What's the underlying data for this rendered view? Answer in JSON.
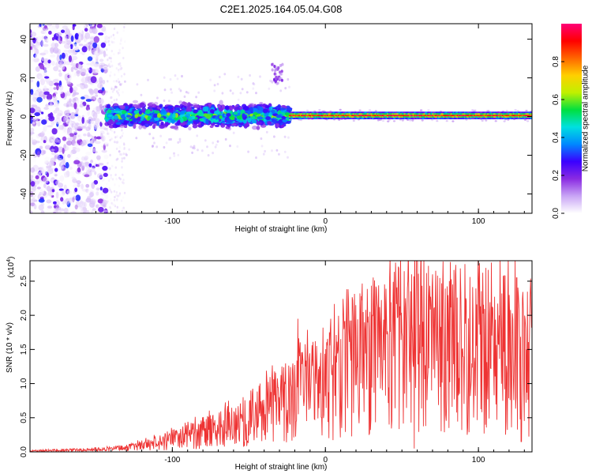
{
  "title": "C2E1.2025.164.05.04.G08",
  "chart_data": [
    {
      "type": "heatmap",
      "xlabel": "Height of straight line (km)",
      "ylabel": "Frequency (Hz)",
      "xlim": [
        -193,
        135
      ],
      "ylim": [
        -50,
        48
      ],
      "xticks": [
        -100,
        0,
        100
      ],
      "yticks": [
        -40,
        -20,
        0,
        20,
        40
      ],
      "colorbar": {
        "label": "Normalized spectral amplitude",
        "range": [
          0,
          1
        ],
        "ticks": [
          "0.0",
          "0.2",
          "0.4",
          "0.6",
          "0.8"
        ],
        "colormap": [
          "#ffffff",
          "#c9a5f5",
          "#8a2be2",
          "#3a00ff",
          "#0088ff",
          "#00e0e0",
          "#00e040",
          "#c0f000",
          "#ffd000",
          "#ff6600",
          "#ff0000",
          "#ff0077"
        ]
      },
      "regions": [
        {
          "x": [
            -193,
            -143
          ],
          "f_spread": [
            -50,
            48
          ],
          "amp": [
            0.0,
            0.35
          ],
          "desc_level": "diffuse"
        },
        {
          "x": [
            -143,
            -23
          ],
          "f_spread": [
            -7,
            8
          ],
          "amp": [
            0.15,
            0.6
          ]
        },
        {
          "x": [
            -35,
            -28
          ],
          "f_spread": [
            17,
            27
          ],
          "amp": [
            0.05,
            0.2
          ]
        },
        {
          "x": [
            -23,
            135
          ],
          "f_center": 0.5,
          "f_spread": [
            -3,
            3
          ],
          "amp": [
            0.7,
            1.0
          ]
        }
      ]
    },
    {
      "type": "line",
      "xlabel": "Height of straight line (km)",
      "ylabel": "SNR (10 * v/v)",
      "yscale_label": "(x10",
      "yscale_exp": "4",
      "xlim": [
        -193,
        135
      ],
      "ylim": [
        0,
        2.8
      ],
      "xticks": [
        -100,
        0,
        100
      ],
      "yticks": [
        "0.0",
        "0.5",
        "1.0",
        "1.5",
        "2.0",
        "2.5"
      ],
      "color": "#ee3333",
      "envelope": {
        "x": [
          -193,
          -160,
          -130,
          -110,
          -90,
          -70,
          -50,
          -30,
          -15,
          0,
          20,
          40,
          60,
          80,
          100,
          120,
          135
        ],
        "y": [
          0.02,
          0.03,
          0.06,
          0.14,
          0.25,
          0.35,
          0.5,
          0.75,
          0.95,
          1.05,
          1.4,
          1.6,
          1.7,
          1.65,
          1.6,
          1.55,
          1.4
        ]
      },
      "peaks": [
        {
          "x": -18,
          "y": 1.95
        },
        {
          "x": 20,
          "y": 2.15
        },
        {
          "x": 42,
          "y": 2.55
        },
        {
          "x": 60,
          "y": 2.8
        },
        {
          "x": 70,
          "y": 2.6
        },
        {
          "x": 100,
          "y": 2.5
        },
        {
          "x": 125,
          "y": 2.55
        }
      ],
      "minima": [
        {
          "x": 58,
          "y": 0.05
        },
        {
          "x": 93,
          "y": 0.35
        },
        {
          "x": 128,
          "y": 0.15
        }
      ]
    }
  ]
}
